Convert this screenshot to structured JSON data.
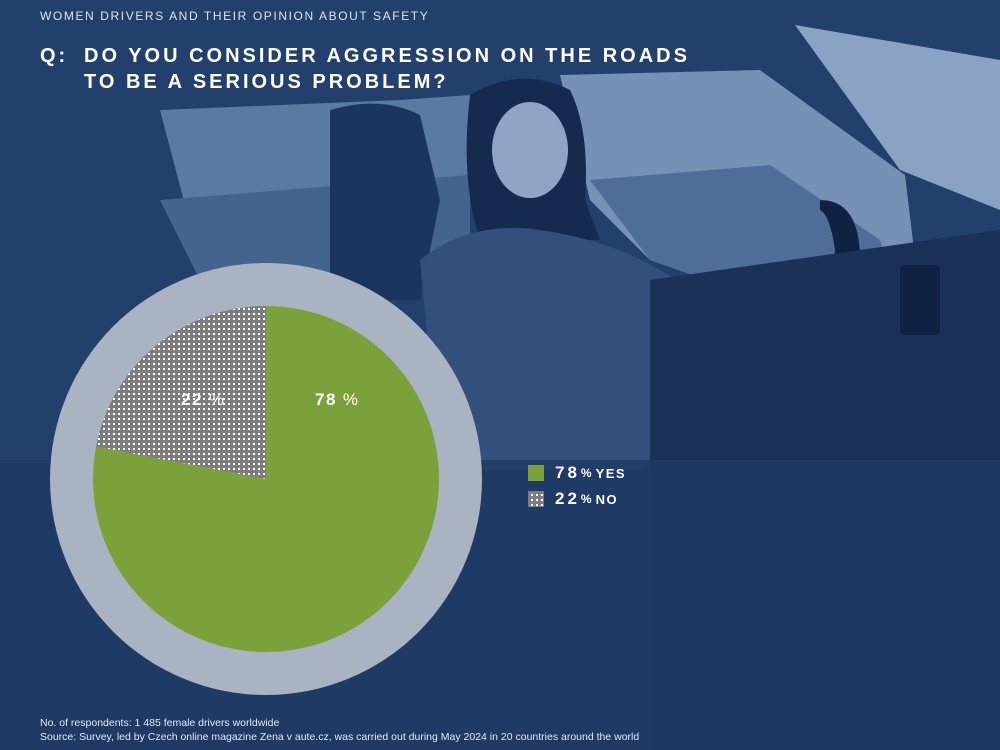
{
  "header": {
    "topline": "WOMEN DRIVERS AND THEIR OPINION ABOUT SAFETY",
    "question_prefix": "Q:",
    "question_line1": "DO YOU CONSIDER AGGRESSION ON THE ROADS",
    "question_line2": "TO BE A SERIOUS PROBLEM?"
  },
  "colors": {
    "background": "#23406b",
    "yes": "#7ba23a",
    "no_pattern": "#7d7d7d",
    "ring": "#a9b3c1"
  },
  "chart_data": {
    "type": "pie",
    "title": "DO YOU CONSIDER AGGRESSION ON THE ROADS TO BE A SERIOUS PROBLEM?",
    "slices": [
      {
        "label": "YES",
        "value": 78,
        "display": "78",
        "unit": "%",
        "color": "#7ba23a"
      },
      {
        "label": "NO",
        "value": 22,
        "display": "22",
        "unit": "%",
        "color": "#7d7d7d"
      }
    ],
    "legend_placement": "right"
  },
  "legend": [
    {
      "value": "78",
      "pct": "%",
      "label": "YES"
    },
    {
      "value": "22",
      "pct": "%",
      "label": "NO"
    }
  ],
  "footer": {
    "respondents": "No. of respondents: 1 485 female drivers worldwide",
    "source": "Source: Survey, led by Czech online magazine Zena v aute.cz, was carried out during May 2024 in 20 countries around the world"
  }
}
